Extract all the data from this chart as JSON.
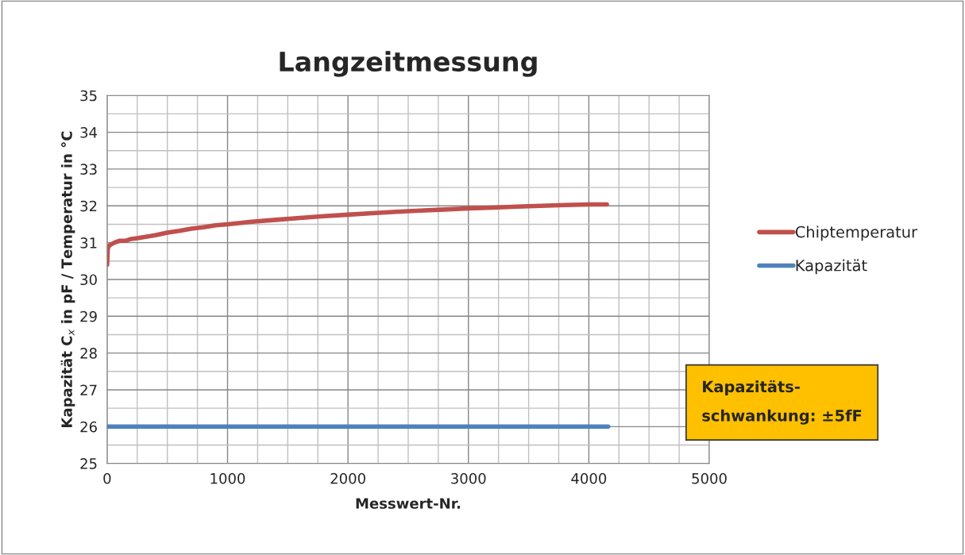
{
  "chart_data": {
    "type": "line",
    "title": "Langzeitmessung",
    "xlabel": "Messwert-Nr.",
    "ylabel": "Kapazität C$_{x}$ in pF / Temperatur in °C",
    "series": [
      {
        "name": "Chiptemperatur",
        "color": "#c0504d",
        "x": [
          0,
          5,
          10,
          30,
          60,
          100,
          150,
          200,
          250,
          300,
          400,
          500,
          600,
          700,
          800,
          900,
          1000,
          1200,
          1400,
          1600,
          1800,
          2000,
          2200,
          2400,
          2600,
          2800,
          3000,
          3200,
          3400,
          3600,
          3800,
          4000,
          4150
        ],
        "values": [
          30.4,
          30.8,
          30.9,
          30.95,
          31.0,
          31.05,
          31.05,
          31.1,
          31.12,
          31.15,
          31.2,
          31.27,
          31.32,
          31.38,
          31.42,
          31.47,
          31.5,
          31.57,
          31.62,
          31.67,
          31.72,
          31.76,
          31.8,
          31.84,
          31.87,
          31.9,
          31.93,
          31.95,
          31.98,
          32.0,
          32.02,
          32.04,
          32.04
        ]
      },
      {
        "name": "Kapazität",
        "color": "#4f81bd",
        "x": [
          0,
          4160
        ],
        "values": [
          26.0,
          26.0
        ]
      }
    ],
    "xlim": [
      0,
      5000
    ],
    "xticks": [
      0,
      1000,
      2000,
      3000,
      4000,
      5000
    ],
    "ylim": [
      25,
      35
    ],
    "yticks": [
      25,
      26,
      27,
      28,
      29,
      30,
      31,
      32,
      33,
      34,
      35
    ],
    "grid": true,
    "legend": "right",
    "marker": "none",
    "line_style": "solid",
    "annotations": [
      "Kapazitäts-\nschwankung: ±5fF"
    ]
  }
}
